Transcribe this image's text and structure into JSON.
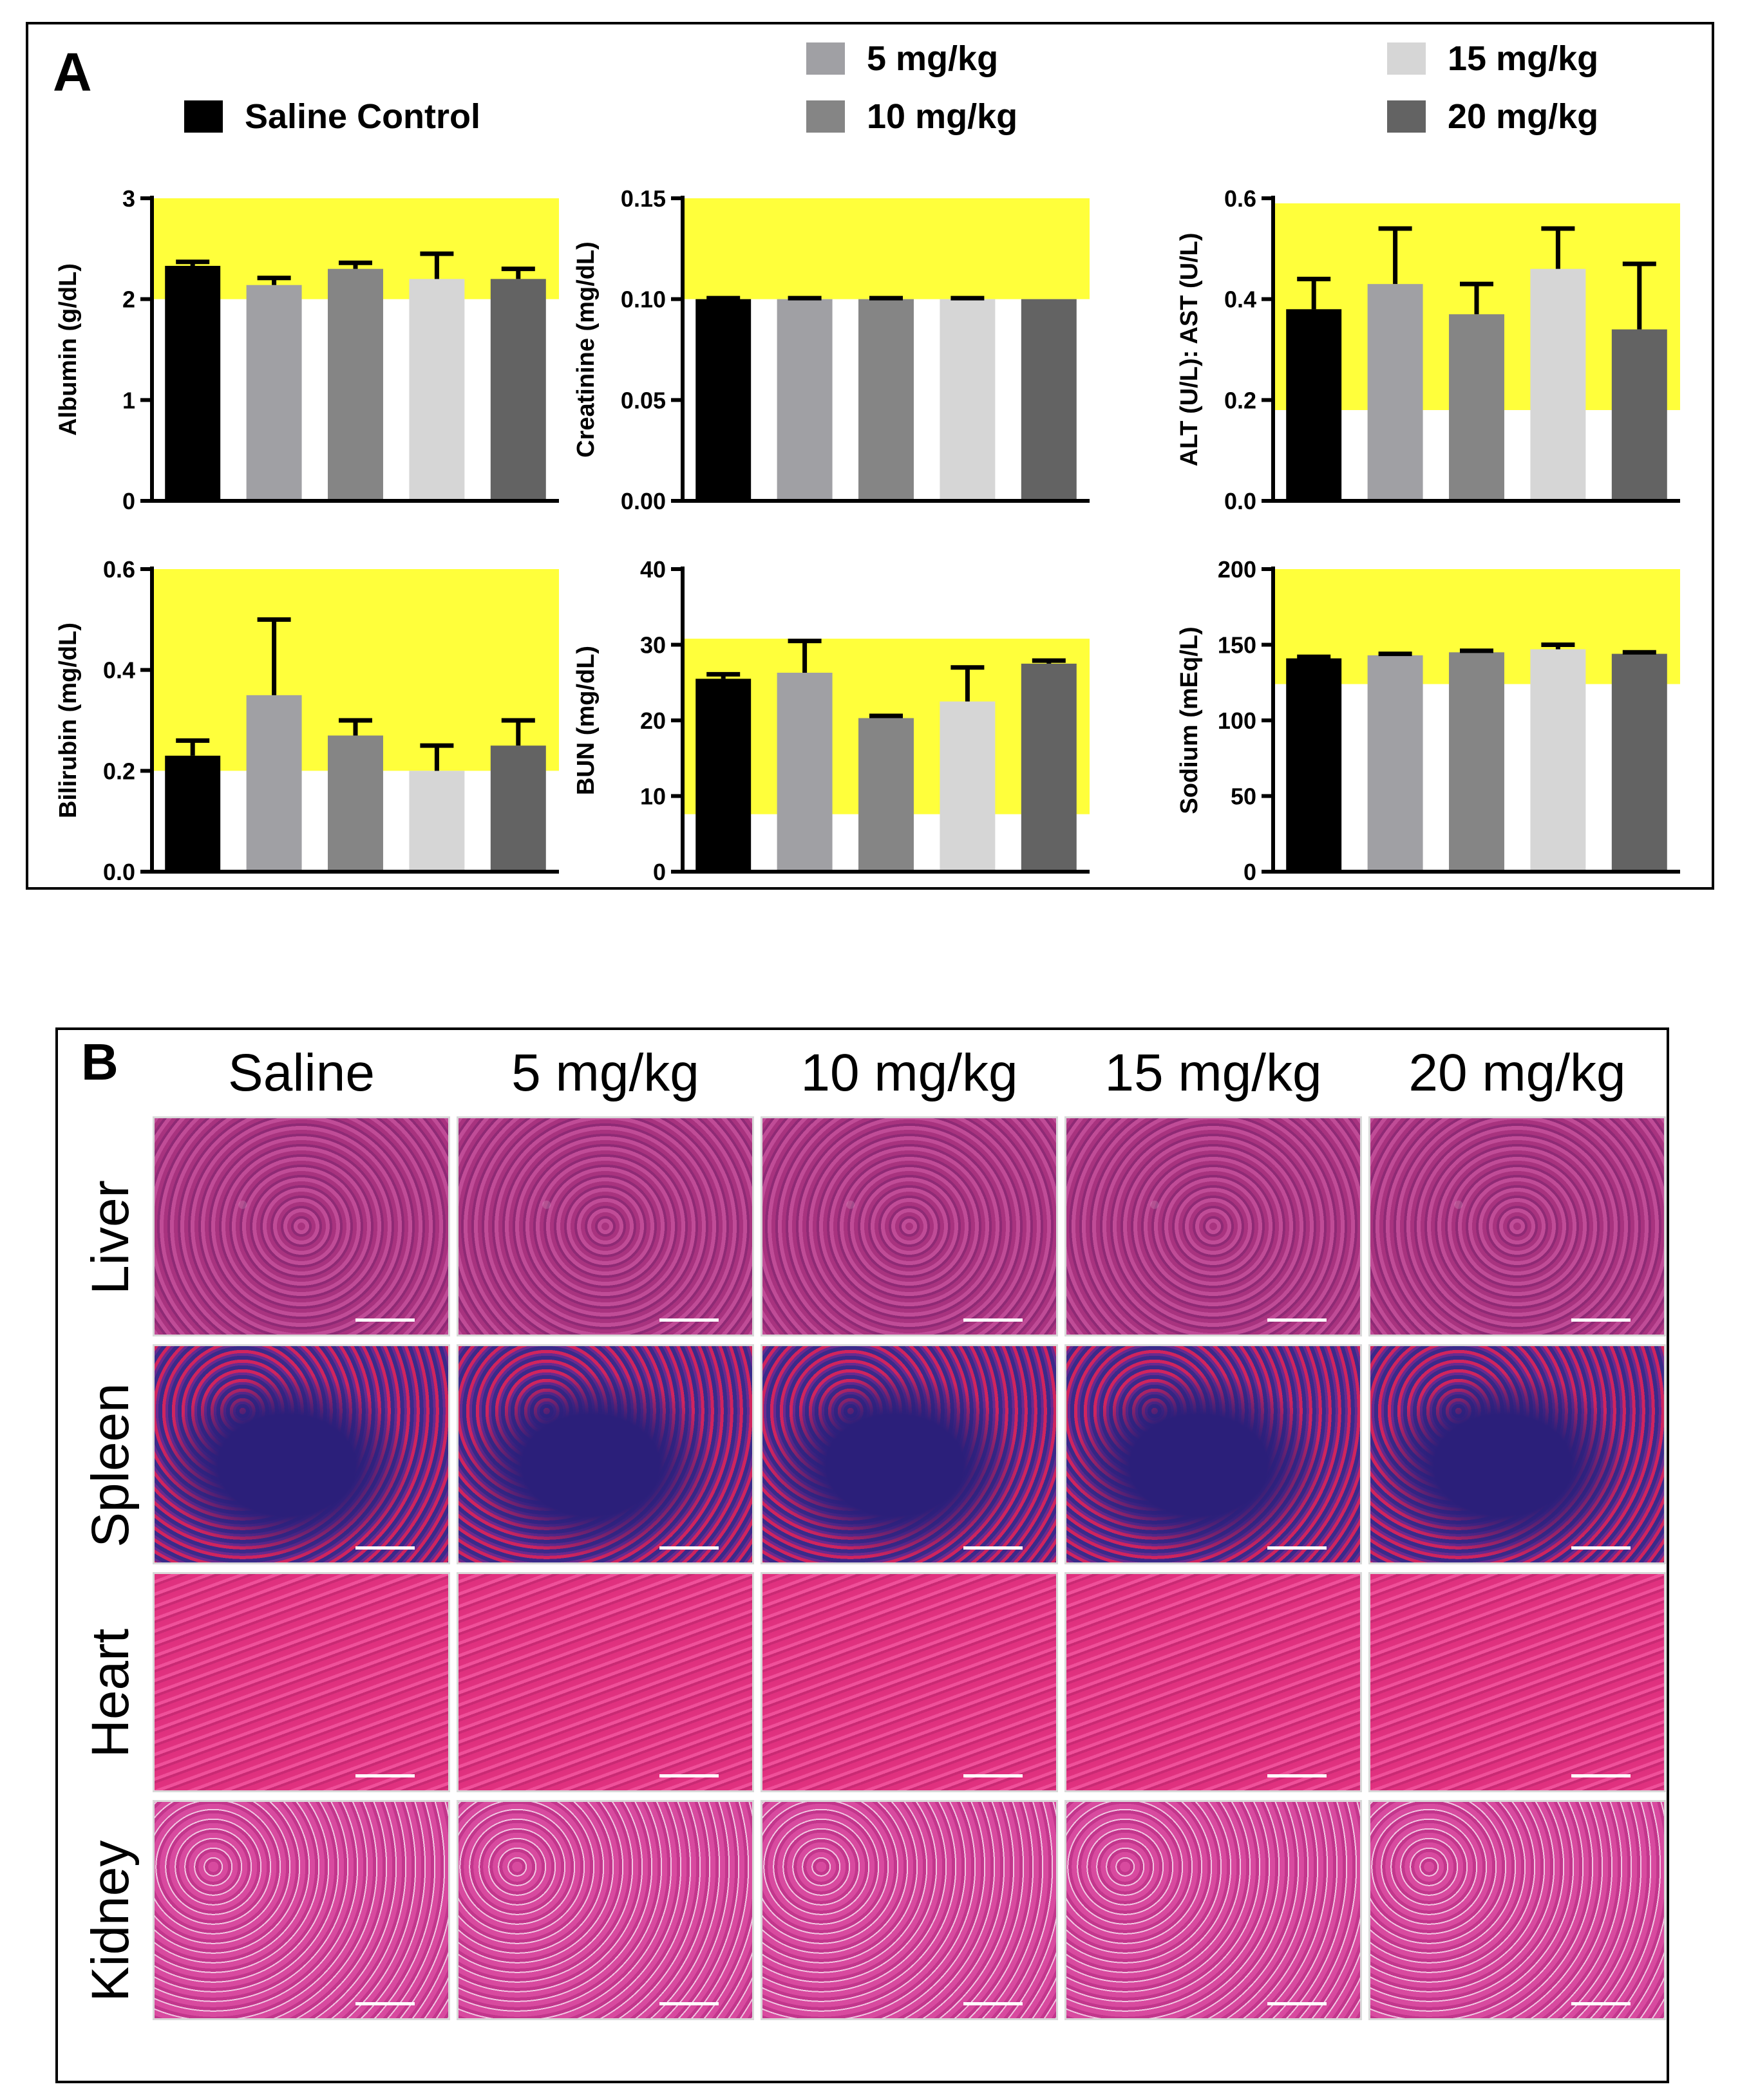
{
  "panel_a": {
    "letter": "A",
    "legend": [
      {
        "label": "Saline Control",
        "color": "#000000"
      },
      {
        "label": "5 mg/kg",
        "color": "#a0a0a4"
      },
      {
        "label": "10 mg/kg",
        "color": "#858585"
      },
      {
        "label": "15 mg/kg",
        "color": "#d6d6d6"
      },
      {
        "label": "20 mg/kg",
        "color": "#636363"
      }
    ]
  },
  "chart_data": [
    {
      "type": "bar",
      "ylabel": "Albumin (g/dL)",
      "ylim": [
        0,
        3
      ],
      "yticks": [
        "0",
        "1",
        "2",
        "3"
      ],
      "tick_values": [
        0,
        1,
        2,
        3
      ],
      "reference_range": [
        2,
        3
      ],
      "categories": [
        "Saline Control",
        "5 mg/kg",
        "10 mg/kg",
        "15 mg/kg",
        "20 mg/kg"
      ],
      "values": [
        2.33,
        2.14,
        2.3,
        2.2,
        2.2
      ],
      "errors": [
        0.04,
        0.07,
        0.06,
        0.25,
        0.1
      ],
      "grid": false
    },
    {
      "type": "bar",
      "ylabel": "Creatinine (mg/dL)",
      "ylim": [
        0,
        0.15
      ],
      "yticks": [
        "0.00",
        "0.05",
        "0.10",
        "0.15"
      ],
      "tick_values": [
        0,
        0.05,
        0.1,
        0.15
      ],
      "reference_range": [
        0.1,
        0.15
      ],
      "categories": [
        "Saline Control",
        "5 mg/kg",
        "10 mg/kg",
        "15 mg/kg",
        "20 mg/kg"
      ],
      "values": [
        0.1,
        0.1,
        0.1,
        0.1,
        0.1
      ],
      "errors": [
        0.0005,
        0.0005,
        0.0005,
        0.0005,
        0
      ],
      "grid": false
    },
    {
      "type": "bar",
      "ylabel": "ALT (U/L): AST (U/L)",
      "ylim": [
        0,
        0.6
      ],
      "yticks": [
        "0.0",
        "0.2",
        "0.4",
        "0.6"
      ],
      "tick_values": [
        0,
        0.2,
        0.4,
        0.6
      ],
      "reference_range": [
        0.18,
        0.59
      ],
      "categories": [
        "Saline Control",
        "5 mg/kg",
        "10 mg/kg",
        "15 mg/kg",
        "20 mg/kg"
      ],
      "values": [
        0.38,
        0.43,
        0.37,
        0.46,
        0.34
      ],
      "errors": [
        0.06,
        0.11,
        0.06,
        0.08,
        0.13
      ],
      "grid": false
    },
    {
      "type": "bar",
      "ylabel": "Bilirubin (mg/dL)",
      "ylim": [
        0,
        0.6
      ],
      "yticks": [
        "0.0",
        "0.2",
        "0.4",
        "0.6"
      ],
      "tick_values": [
        0,
        0.2,
        0.4,
        0.6
      ],
      "reference_range": [
        0.2,
        0.6
      ],
      "categories": [
        "Saline Control",
        "5 mg/kg",
        "10 mg/kg",
        "15 mg/kg",
        "20 mg/kg"
      ],
      "values": [
        0.23,
        0.35,
        0.27,
        0.2,
        0.25
      ],
      "errors": [
        0.03,
        0.15,
        0.03,
        0.05,
        0.05
      ],
      "grid": false
    },
    {
      "type": "bar",
      "ylabel": "BUN (mg/dL)",
      "ylim": [
        0,
        40
      ],
      "yticks": [
        "0",
        "10",
        "20",
        "30",
        "40"
      ],
      "tick_values": [
        0,
        10,
        20,
        30,
        40
      ],
      "reference_range": [
        7.6,
        30.8
      ],
      "categories": [
        "Saline Control",
        "5 mg/kg",
        "10 mg/kg",
        "15 mg/kg",
        "20 mg/kg"
      ],
      "values": [
        25.5,
        26.3,
        20.3,
        22.5,
        27.5
      ],
      "errors": [
        0.6,
        4.2,
        0.3,
        4.5,
        0.4
      ],
      "grid": false
    },
    {
      "type": "bar",
      "ylabel": "Sodium (mEq/L)",
      "ylim": [
        0,
        200
      ],
      "yticks": [
        "0",
        "50",
        "100",
        "150",
        "200"
      ],
      "tick_values": [
        0,
        50,
        100,
        150,
        200
      ],
      "reference_range": [
        124,
        200
      ],
      "categories": [
        "Saline Control",
        "5 mg/kg",
        "10 mg/kg",
        "15 mg/kg",
        "20 mg/kg"
      ],
      "values": [
        141,
        143,
        145,
        147,
        144
      ],
      "errors": [
        1,
        1,
        1,
        3,
        1
      ],
      "grid": false
    }
  ],
  "colors": {
    "reference_band": "#ffff3b",
    "axis": "#000000"
  },
  "panel_b": {
    "letter": "B",
    "columns": [
      "Saline",
      "5 mg/kg",
      "10 mg/kg",
      "15 mg/kg",
      "20 mg/kg"
    ],
    "rows": [
      "Liver",
      "Spleen",
      "Heart",
      "Kidney"
    ]
  }
}
